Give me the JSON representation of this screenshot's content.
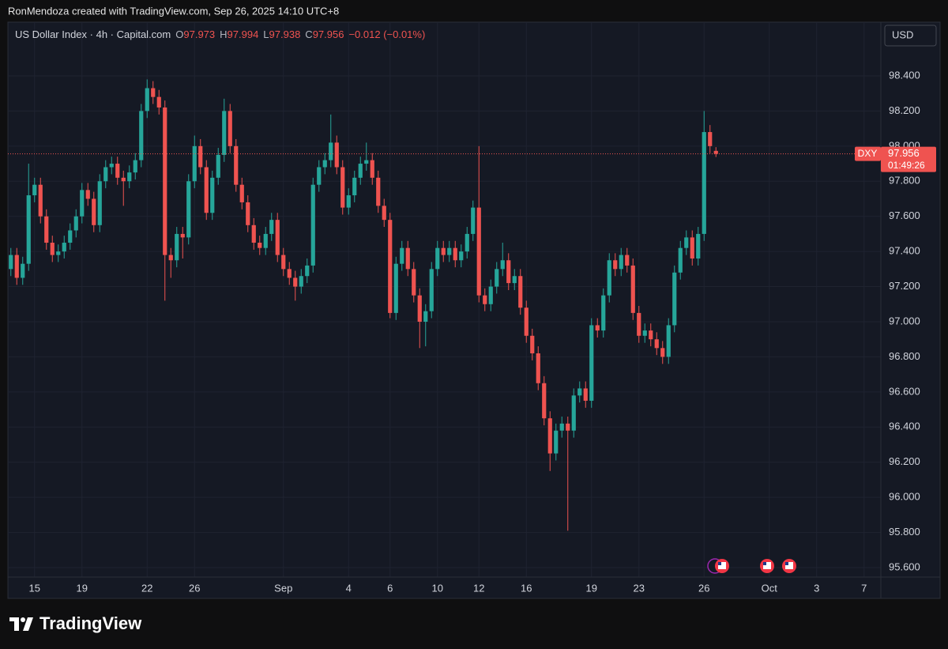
{
  "chart_data": {
    "type": "candlestick",
    "header": "RonMendoza created with TradingView.com, Sep 26, 2025 14:10 UTC+8",
    "title": "US Dollar Index · 4h · Capital.com",
    "ohlc_letters": [
      "O",
      "H",
      "L",
      "C"
    ],
    "change_label": "−0.012 (−0.01%)",
    "currency": "USD",
    "symbol": "DXY",
    "countdown": "01:49:26",
    "brand": "TradingView",
    "up_color": "#26a69a",
    "down_color": "#ef5350",
    "grid": true,
    "ylim": [
      95.546,
      98.706
    ],
    "yticks": [
      {
        "value": 95.6,
        "label": "95.600"
      },
      {
        "value": 95.8,
        "label": "95.800"
      },
      {
        "value": 96.0,
        "label": "96.000"
      },
      {
        "value": 96.2,
        "label": "96.200"
      },
      {
        "value": 96.4,
        "label": "96.400"
      },
      {
        "value": 96.6,
        "label": "96.600"
      },
      {
        "value": 96.8,
        "label": "96.800"
      },
      {
        "value": 97.0,
        "label": "97.000"
      },
      {
        "value": 97.2,
        "label": "97.200"
      },
      {
        "value": 97.4,
        "label": "97.400"
      },
      {
        "value": 97.6,
        "label": "97.600"
      },
      {
        "value": 97.8,
        "label": "97.800"
      },
      {
        "value": 98.0,
        "label": "98.000"
      },
      {
        "value": 98.2,
        "label": "98.200"
      },
      {
        "value": 98.4,
        "label": "98.400"
      }
    ],
    "categories": [
      null,
      null,
      null,
      null,
      "15",
      null,
      null,
      null,
      null,
      null,
      null,
      null,
      "19",
      null,
      null,
      null,
      null,
      null,
      null,
      null,
      null,
      null,
      null,
      "22",
      null,
      null,
      null,
      null,
      null,
      null,
      null,
      "26",
      null,
      null,
      null,
      null,
      null,
      null,
      null,
      null,
      null,
      null,
      null,
      null,
      null,
      null,
      "Sep",
      null,
      null,
      null,
      null,
      null,
      null,
      null,
      null,
      null,
      null,
      "4",
      null,
      null,
      null,
      null,
      null,
      null,
      "6",
      null,
      null,
      null,
      null,
      null,
      null,
      null,
      "10",
      null,
      null,
      null,
      null,
      null,
      null,
      "12",
      null,
      null,
      null,
      null,
      null,
      null,
      null,
      "16",
      null,
      null,
      null,
      null,
      null,
      null,
      null,
      null,
      null,
      null,
      "19",
      null,
      null,
      null,
      null,
      null,
      null,
      null,
      "23",
      null,
      null,
      null,
      null,
      null,
      null,
      null,
      null,
      null,
      null,
      "26",
      null,
      null,
      null,
      null,
      null,
      null,
      null,
      null,
      null,
      null,
      "Oct",
      null,
      null,
      null,
      null,
      null,
      null,
      null,
      "3",
      null,
      null,
      null,
      null,
      null,
      null,
      null,
      "7",
      null
    ],
    "open": [
      97.3,
      97.38,
      97.25,
      97.33,
      97.72,
      97.78,
      97.6,
      97.45,
      97.38,
      97.4,
      97.45,
      97.52,
      97.6,
      97.75,
      97.7,
      97.55,
      97.8,
      97.88,
      97.9,
      97.82,
      97.8,
      97.85,
      97.92,
      98.2,
      98.33,
      98.28,
      98.22,
      97.38,
      97.35,
      97.5,
      97.48,
      97.8,
      98.0,
      97.88,
      97.62,
      97.82,
      97.95,
      98.2,
      98.0,
      97.78,
      97.68,
      97.55,
      97.45,
      97.42,
      97.5,
      97.58,
      97.38,
      97.3,
      97.25,
      97.2,
      97.26,
      97.32,
      97.78,
      97.88,
      97.92,
      98.02,
      97.88,
      97.65,
      97.72,
      97.82,
      97.9,
      97.92,
      97.82,
      97.66,
      97.58,
      97.05,
      97.33,
      97.42,
      97.3,
      97.15,
      97.0,
      97.06,
      97.3,
      97.42,
      97.38,
      97.42,
      97.35,
      97.4,
      97.5,
      97.65,
      97.15,
      97.1,
      97.2,
      97.3,
      97.35,
      97.22,
      97.26,
      97.08,
      96.92,
      96.82,
      96.65,
      96.45,
      96.25,
      96.38,
      96.42,
      96.38,
      96.58,
      96.62,
      96.55,
      96.98,
      96.95,
      97.15,
      97.35,
      97.3,
      97.38,
      97.32,
      97.05,
      96.92,
      96.95,
      96.9,
      96.85,
      96.8,
      96.98,
      97.28,
      97.42,
      97.48,
      97.36,
      97.5,
      98.08,
      97.973,
      null,
      null,
      null,
      null,
      null,
      null,
      null,
      null,
      null,
      null,
      null,
      null,
      null,
      null,
      null,
      null,
      null,
      null,
      null,
      null,
      null,
      null,
      null,
      null,
      null,
      null
    ],
    "high": [
      97.42,
      97.42,
      97.37,
      97.9,
      97.82,
      97.82,
      97.64,
      97.49,
      97.44,
      97.49,
      97.56,
      97.64,
      97.79,
      97.79,
      97.74,
      97.84,
      97.92,
      97.94,
      97.94,
      97.86,
      97.89,
      97.96,
      98.24,
      98.38,
      98.37,
      98.32,
      98.26,
      97.42,
      97.54,
      97.54,
      97.84,
      98.06,
      98.04,
      97.92,
      97.86,
      97.99,
      98.27,
      98.24,
      98.04,
      97.82,
      97.72,
      97.59,
      97.49,
      97.54,
      97.62,
      97.62,
      97.42,
      97.34,
      97.29,
      97.3,
      97.36,
      97.82,
      97.92,
      97.96,
      98.18,
      98.06,
      97.92,
      97.76,
      97.86,
      97.94,
      98.02,
      97.96,
      97.86,
      97.7,
      97.62,
      97.37,
      97.46,
      97.46,
      97.34,
      97.19,
      97.1,
      97.34,
      97.46,
      97.46,
      97.46,
      97.46,
      97.44,
      97.54,
      97.69,
      98.0,
      97.19,
      97.24,
      97.34,
      97.45,
      97.39,
      97.3,
      97.3,
      97.12,
      96.96,
      96.86,
      96.69,
      96.49,
      96.42,
      96.46,
      96.46,
      96.62,
      96.66,
      96.66,
      97.02,
      97.02,
      97.19,
      97.39,
      97.39,
      97.42,
      97.42,
      97.36,
      97.09,
      96.99,
      96.99,
      96.94,
      96.89,
      97.02,
      97.32,
      97.46,
      97.52,
      97.52,
      97.54,
      98.2,
      98.12,
      97.994,
      null,
      null,
      null,
      null,
      null,
      null,
      null,
      null,
      null,
      null,
      null,
      null,
      null,
      null,
      null,
      null,
      null,
      null,
      null,
      null,
      null,
      null,
      null,
      null,
      null,
      null
    ],
    "low": [
      97.26,
      97.21,
      97.21,
      97.29,
      97.68,
      97.56,
      97.41,
      97.34,
      97.34,
      97.36,
      97.41,
      97.48,
      97.56,
      97.66,
      97.51,
      97.51,
      97.76,
      97.84,
      97.78,
      97.66,
      97.76,
      97.81,
      97.88,
      98.16,
      98.24,
      98.18,
      97.12,
      97.25,
      97.31,
      97.36,
      97.44,
      97.76,
      97.84,
      97.58,
      97.58,
      97.78,
      97.91,
      97.96,
      97.74,
      97.64,
      97.51,
      97.41,
      97.38,
      97.38,
      97.46,
      97.34,
      97.26,
      97.21,
      97.12,
      97.16,
      97.22,
      97.28,
      97.74,
      97.84,
      97.88,
      97.84,
      97.61,
      97.61,
      97.68,
      97.78,
      97.86,
      97.78,
      97.62,
      97.54,
      97.02,
      97.01,
      97.29,
      97.26,
      97.11,
      96.85,
      96.86,
      97.02,
      97.26,
      97.34,
      97.34,
      97.31,
      97.31,
      97.36,
      97.46,
      97.11,
      97.06,
      97.06,
      97.16,
      97.26,
      97.18,
      97.18,
      97.04,
      96.88,
      96.78,
      96.61,
      96.41,
      96.15,
      96.21,
      96.34,
      95.81,
      96.34,
      96.54,
      96.51,
      96.51,
      96.91,
      96.91,
      97.11,
      97.26,
      97.26,
      97.28,
      97.01,
      96.88,
      96.88,
      96.86,
      96.81,
      96.76,
      96.76,
      96.94,
      97.24,
      97.38,
      97.32,
      97.32,
      97.46,
      97.96,
      97.938,
      null,
      null,
      null,
      null,
      null,
      null,
      null,
      null,
      null,
      null,
      null,
      null,
      null,
      null,
      null,
      null,
      null,
      null,
      null,
      null,
      null,
      null,
      null,
      null,
      null,
      null
    ],
    "close": [
      97.38,
      97.25,
      97.33,
      97.72,
      97.78,
      97.6,
      97.45,
      97.38,
      97.4,
      97.45,
      97.52,
      97.6,
      97.75,
      97.7,
      97.55,
      97.8,
      97.88,
      97.9,
      97.82,
      97.8,
      97.85,
      97.92,
      98.2,
      98.33,
      98.28,
      98.22,
      97.38,
      97.35,
      97.5,
      97.48,
      97.8,
      98.0,
      97.88,
      97.62,
      97.82,
      97.95,
      98.2,
      98.0,
      97.78,
      97.68,
      97.55,
      97.45,
      97.42,
      97.5,
      97.58,
      97.38,
      97.3,
      97.25,
      97.2,
      97.26,
      97.32,
      97.78,
      97.88,
      97.92,
      98.02,
      97.88,
      97.65,
      97.72,
      97.82,
      97.9,
      97.92,
      97.82,
      97.66,
      97.58,
      97.05,
      97.33,
      97.42,
      97.3,
      97.15,
      97.0,
      97.06,
      97.3,
      97.42,
      97.38,
      97.42,
      97.35,
      97.4,
      97.5,
      97.65,
      97.15,
      97.1,
      97.2,
      97.3,
      97.35,
      97.22,
      97.26,
      97.08,
      96.92,
      96.82,
      96.65,
      96.45,
      96.25,
      96.38,
      96.42,
      96.38,
      96.58,
      96.62,
      96.55,
      96.98,
      96.95,
      97.15,
      97.35,
      97.3,
      97.38,
      97.32,
      97.05,
      96.92,
      96.95,
      96.9,
      96.85,
      96.8,
      96.98,
      97.28,
      97.42,
      97.48,
      97.36,
      97.5,
      98.08,
      98.0,
      97.956,
      null,
      null,
      null,
      null,
      null,
      null,
      null,
      null,
      null,
      null,
      null,
      null,
      null,
      null,
      null,
      null,
      null,
      null,
      null,
      null,
      null,
      null,
      null,
      null,
      null,
      null
    ]
  }
}
